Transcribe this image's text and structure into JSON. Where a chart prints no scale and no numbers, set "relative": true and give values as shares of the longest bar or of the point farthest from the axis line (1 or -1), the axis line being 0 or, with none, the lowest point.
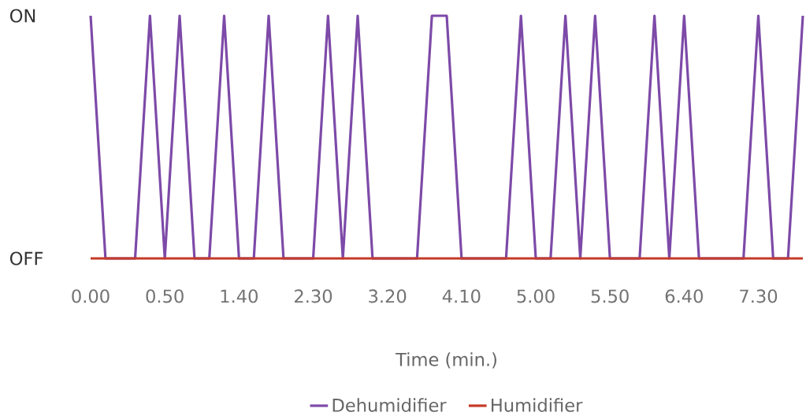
{
  "chart_data": {
    "type": "line",
    "xlabel": "Time (min.)",
    "categories": [
      "0.00",
      null,
      null,
      null,
      null,
      "0.50",
      null,
      null,
      null,
      null,
      "1.40",
      null,
      null,
      null,
      null,
      "2.30",
      null,
      null,
      null,
      null,
      "3.20",
      null,
      null,
      null,
      null,
      "4.10",
      null,
      null,
      null,
      null,
      "5.00",
      null,
      null,
      null,
      null,
      "5.50",
      null,
      null,
      null,
      null,
      "6.40",
      null,
      null,
      null,
      null,
      "7.30",
      null,
      null,
      null
    ],
    "series": [
      {
        "name": "Dehumidifier",
        "color": "#7d4aa8",
        "values": [
          1,
          0,
          0,
          0,
          1,
          0,
          1,
          0,
          0,
          1,
          0,
          0,
          1,
          0,
          0,
          0,
          1,
          0,
          1,
          0,
          0,
          0,
          0,
          1,
          1,
          0,
          0,
          0,
          0,
          1,
          0,
          0,
          1,
          0,
          1,
          0,
          0,
          0,
          1,
          0,
          1,
          0,
          0,
          0,
          0,
          1,
          0,
          0,
          1
        ]
      },
      {
        "name": "Humidifier",
        "color": "#c53a27",
        "values": [
          0,
          0,
          0,
          0,
          0,
          0,
          0,
          0,
          0,
          0,
          0,
          0,
          0,
          0,
          0,
          0,
          0,
          0,
          0,
          0,
          0,
          0,
          0,
          0,
          0,
          0,
          0,
          0,
          0,
          0,
          0,
          0,
          0,
          0,
          0,
          0,
          0,
          0,
          0,
          0,
          0,
          0,
          0,
          0,
          0,
          0,
          0,
          0,
          0
        ]
      }
    ],
    "relative": true,
    "annotations": [
      "ON",
      "OFF"
    ],
    "legend": "bottom",
    "marker": "none",
    "line_style": "solid"
  }
}
